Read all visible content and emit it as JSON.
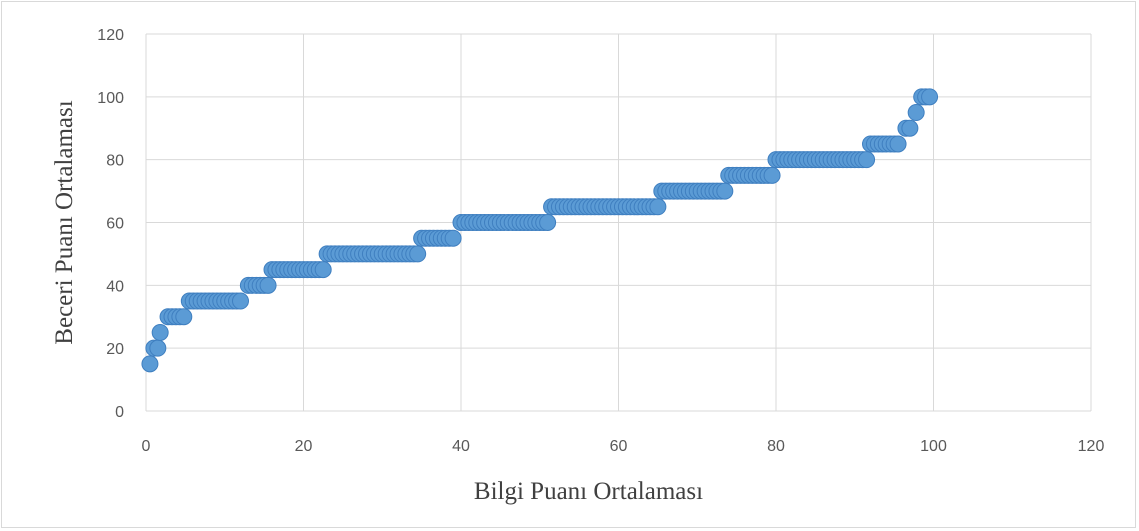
{
  "chart_data": {
    "type": "scatter",
    "xlabel": "Bilgi Puanı Ortalaması",
    "ylabel": "Beceri Puanı Ortalaması",
    "xlim": [
      0,
      120
    ],
    "ylim": [
      0,
      120
    ],
    "x_ticks": [
      0,
      20,
      40,
      60,
      80,
      100,
      120
    ],
    "y_ticks": [
      0,
      20,
      40,
      60,
      80,
      100,
      120
    ],
    "grid": true,
    "marker_color": "#5b9bd5",
    "marker_edge_color": "#3f7fc0",
    "segments": [
      {
        "y": 15,
        "x_from": 0.5,
        "x_to": 0.5
      },
      {
        "y": 20,
        "x_from": 1.0,
        "x_to": 1.5
      },
      {
        "y": 25,
        "x_from": 1.8,
        "x_to": 2.2
      },
      {
        "y": 30,
        "x_from": 2.8,
        "x_to": 5.0
      },
      {
        "y": 35,
        "x_from": 5.5,
        "x_to": 12.0
      },
      {
        "y": 40,
        "x_from": 13.0,
        "x_to": 15.5
      },
      {
        "y": 45,
        "x_from": 16.0,
        "x_to": 22.5
      },
      {
        "y": 50,
        "x_from": 23.0,
        "x_to": 34.5
      },
      {
        "y": 55,
        "x_from": 35.0,
        "x_to": 39.0
      },
      {
        "y": 60,
        "x_from": 40.0,
        "x_to": 51.0
      },
      {
        "y": 65,
        "x_from": 51.5,
        "x_to": 65.0
      },
      {
        "y": 70,
        "x_from": 65.5,
        "x_to": 73.5
      },
      {
        "y": 75,
        "x_from": 74.0,
        "x_to": 79.5
      },
      {
        "y": 80,
        "x_from": 80.0,
        "x_to": 91.5
      },
      {
        "y": 85,
        "x_from": 92.0,
        "x_to": 95.5
      },
      {
        "y": 90,
        "x_from": 96.5,
        "x_to": 97.0
      },
      {
        "y": 95,
        "x_from": 97.8,
        "x_to": 98.0
      },
      {
        "y": 100,
        "x_from": 98.5,
        "x_to": 99.5
      }
    ],
    "point_step": 0.5
  }
}
